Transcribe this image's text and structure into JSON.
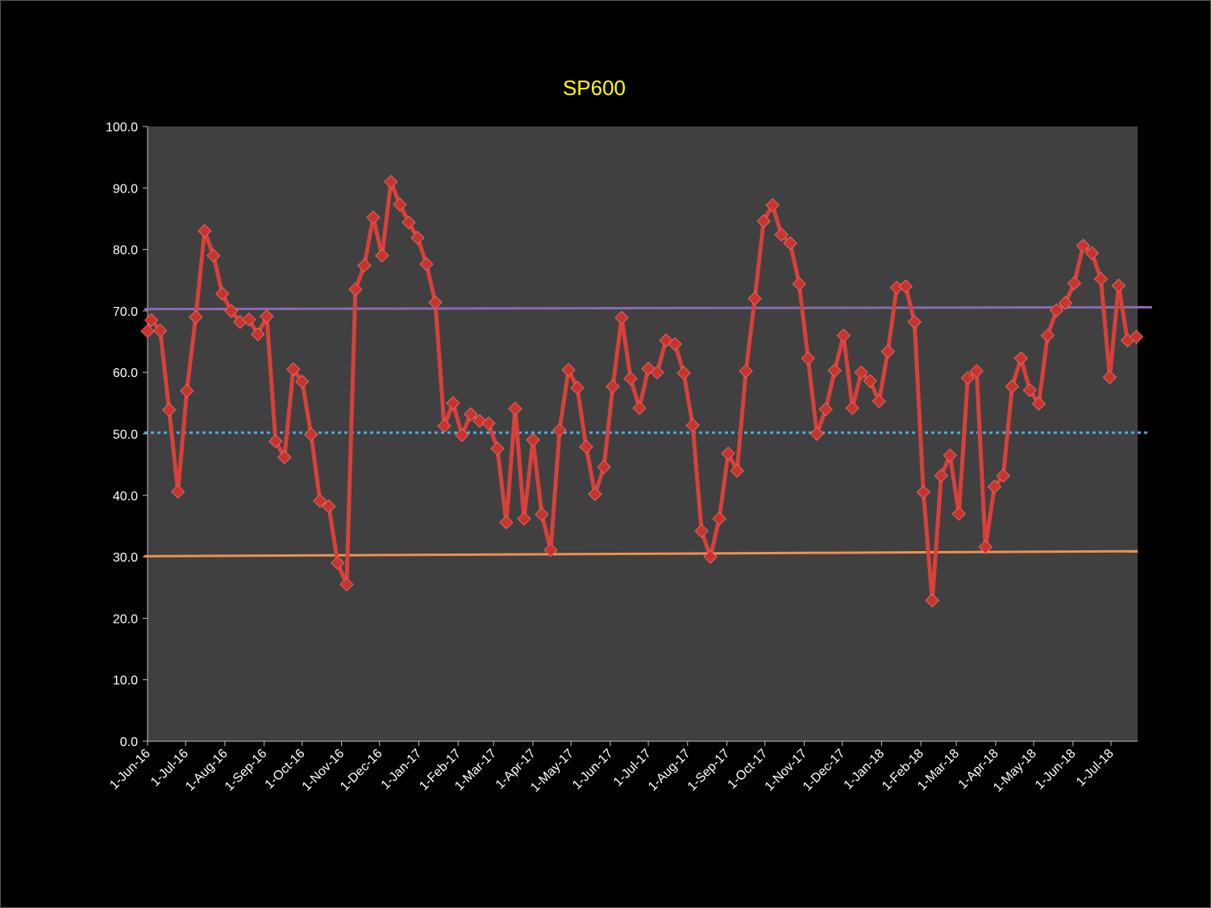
{
  "chart_data": {
    "type": "line",
    "title": "SP600",
    "xlabel": "",
    "ylabel": "",
    "ylim": [
      0,
      100
    ],
    "yticks": [
      "0.0",
      "10.0",
      "20.0",
      "30.0",
      "40.0",
      "50.0",
      "60.0",
      "70.0",
      "80.0",
      "90.0",
      "100.0"
    ],
    "xlim": [
      "2016-06-01",
      "2018-07-22"
    ],
    "xticks": [
      {
        "date": "2016-06-01",
        "label": "1-Jun-16"
      },
      {
        "date": "2016-07-01",
        "label": "1-Jul-16"
      },
      {
        "date": "2016-08-01",
        "label": "1-Aug-16"
      },
      {
        "date": "2016-09-01",
        "label": "1-Sep-16"
      },
      {
        "date": "2016-10-01",
        "label": "1-Oct-16"
      },
      {
        "date": "2016-11-01",
        "label": "1-Nov-16"
      },
      {
        "date": "2016-12-01",
        "label": "1-Dec-16"
      },
      {
        "date": "2017-01-01",
        "label": "1-Jan-17"
      },
      {
        "date": "2017-02-01",
        "label": "1-Feb-17"
      },
      {
        "date": "2017-03-01",
        "label": "1-Mar-17"
      },
      {
        "date": "2017-04-01",
        "label": "1-Apr-17"
      },
      {
        "date": "2017-05-01",
        "label": "1-May-17"
      },
      {
        "date": "2017-06-01",
        "label": "1-Jun-17"
      },
      {
        "date": "2017-07-01",
        "label": "1-Jul-17"
      },
      {
        "date": "2017-08-01",
        "label": "1-Aug-17"
      },
      {
        "date": "2017-09-01",
        "label": "1-Sep-17"
      },
      {
        "date": "2017-10-01",
        "label": "1-Oct-17"
      },
      {
        "date": "2017-11-01",
        "label": "1-Nov-17"
      },
      {
        "date": "2017-12-01",
        "label": "1-Dec-17"
      },
      {
        "date": "2018-01-01",
        "label": "1-Jan-18"
      },
      {
        "date": "2018-02-01",
        "label": "1-Feb-18"
      },
      {
        "date": "2018-03-01",
        "label": "1-Mar-18"
      },
      {
        "date": "2018-04-01",
        "label": "1-Apr-18"
      },
      {
        "date": "2018-05-01",
        "label": "1-May-18"
      },
      {
        "date": "2018-06-01",
        "label": "1-Jun-18"
      },
      {
        "date": "2018-07-01",
        "label": "1-Jul-18"
      }
    ],
    "grid": false,
    "legend": "none",
    "series": [
      {
        "color": "#d9403a",
        "marker": "diamond",
        "x": [
          "2016-06-01",
          "2016-06-04",
          "2016-06-11",
          "2016-06-18",
          "2016-06-25",
          "2016-07-02",
          "2016-07-09",
          "2016-07-16",
          "2016-07-23",
          "2016-07-30",
          "2016-08-06",
          "2016-08-13",
          "2016-08-20",
          "2016-08-27",
          "2016-09-03",
          "2016-09-10",
          "2016-09-17",
          "2016-09-24",
          "2016-10-01",
          "2016-10-08",
          "2016-10-15",
          "2016-10-22",
          "2016-10-29",
          "2016-11-05",
          "2016-11-12",
          "2016-11-19",
          "2016-11-26",
          "2016-12-03",
          "2016-12-10",
          "2016-12-17",
          "2016-12-24",
          "2016-12-31",
          "2017-01-07",
          "2017-01-14",
          "2017-01-21",
          "2017-01-28",
          "2017-02-04",
          "2017-02-11",
          "2017-02-18",
          "2017-02-25",
          "2017-03-04",
          "2017-03-11",
          "2017-03-18",
          "2017-03-25",
          "2017-04-01",
          "2017-04-08",
          "2017-04-15",
          "2017-04-22",
          "2017-04-29",
          "2017-05-06",
          "2017-05-13",
          "2017-05-20",
          "2017-05-27",
          "2017-06-03",
          "2017-06-10",
          "2017-06-17",
          "2017-06-24",
          "2017-07-01",
          "2017-07-08",
          "2017-07-15",
          "2017-07-22",
          "2017-07-29",
          "2017-08-05",
          "2017-08-12",
          "2017-08-19",
          "2017-08-26",
          "2017-09-02",
          "2017-09-09",
          "2017-09-16",
          "2017-09-23",
          "2017-09-30",
          "2017-10-07",
          "2017-10-14",
          "2017-10-21",
          "2017-10-28",
          "2017-11-04",
          "2017-11-11",
          "2017-11-18",
          "2017-11-25",
          "2017-12-02",
          "2017-12-09",
          "2017-12-16",
          "2017-12-23",
          "2017-12-30",
          "2018-01-06",
          "2018-01-13",
          "2018-01-20",
          "2018-01-27",
          "2018-02-03",
          "2018-02-10",
          "2018-02-17",
          "2018-02-24",
          "2018-03-03",
          "2018-03-10",
          "2018-03-17",
          "2018-03-24",
          "2018-03-31",
          "2018-04-07",
          "2018-04-14",
          "2018-04-21",
          "2018-04-28",
          "2018-05-05",
          "2018-05-12",
          "2018-05-19",
          "2018-05-26",
          "2018-06-02",
          "2018-06-09",
          "2018-06-16",
          "2018-06-23",
          "2018-06-30",
          "2018-07-07",
          "2018-07-14",
          "2018-07-21"
        ],
        "values": [
          66.7,
          68.5,
          66.8,
          53.9,
          40.6,
          57.0,
          69.0,
          83.0,
          79.0,
          72.8,
          70.0,
          68.2,
          68.6,
          66.2,
          69.1,
          48.8,
          46.2,
          60.5,
          58.5,
          49.9,
          39.1,
          38.2,
          29.0,
          25.5,
          73.5,
          77.4,
          85.2,
          79.0,
          91.0,
          87.3,
          84.4,
          81.9,
          77.6,
          71.4,
          51.3,
          55.0,
          49.8,
          53.2,
          52.1,
          51.7,
          47.6,
          35.6,
          54.1,
          36.2,
          49.0,
          36.9,
          31.1,
          50.6,
          60.4,
          57.5,
          47.9,
          40.2,
          44.6,
          57.7,
          68.9,
          59.0,
          54.2,
          60.6,
          60.0,
          65.2,
          64.6,
          59.9,
          51.4,
          34.2,
          30.0,
          36.2,
          46.8,
          44.0,
          60.2,
          72.0,
          84.6,
          87.2,
          82.4,
          81.0,
          74.4,
          62.3,
          50.0,
          54.0,
          60.3,
          66.0,
          54.2,
          60.0,
          58.6,
          55.3,
          63.4,
          73.8,
          74.0,
          68.2,
          40.5,
          22.9,
          43.2,
          46.5,
          37.0,
          59.1,
          60.2,
          31.6,
          41.4,
          43.2,
          57.7,
          62.3,
          57.1,
          54.9,
          66.0,
          70.1,
          71.3,
          74.5,
          80.6,
          79.4,
          75.2,
          59.2,
          74.1,
          65.2,
          65.8
        ]
      }
    ],
    "reference_lines": [
      {
        "color": "#8a6bb0",
        "style": "solid",
        "y_start": 70.3,
        "y_end": 70.6
      },
      {
        "color": "#4aaee0",
        "style": "dotted",
        "y_start": 50.2,
        "y_end": 50.2
      },
      {
        "color": "#f09050",
        "style": "solid",
        "y_start": 30.1,
        "y_end": 30.9
      }
    ]
  }
}
